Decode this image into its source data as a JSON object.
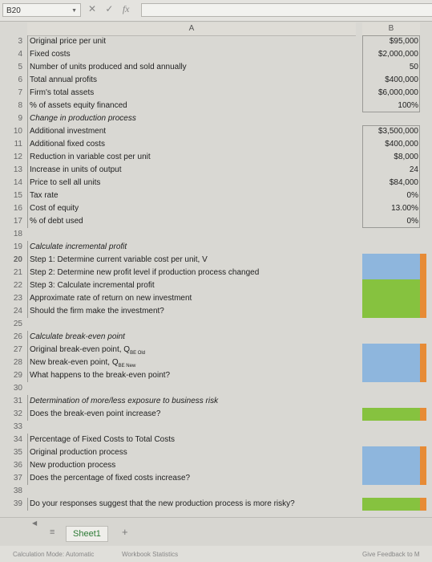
{
  "formula_bar": {
    "cell_ref": "B20",
    "fx_label": "fx"
  },
  "columns": {
    "a": "A",
    "b": "B"
  },
  "rows": [
    {
      "n": "3",
      "a": "Original price per unit",
      "b": "$95,000"
    },
    {
      "n": "4",
      "a": "Fixed costs",
      "b": "$2,000,000"
    },
    {
      "n": "5",
      "a": "Number of units produced and sold annually",
      "b": "50"
    },
    {
      "n": "6",
      "a": "Total annual profits",
      "b": "$400,000"
    },
    {
      "n": "7",
      "a": "Firm's total assets",
      "b": "$6,000,000"
    },
    {
      "n": "8",
      "a": "% of assets equity financed",
      "b": "100%"
    },
    {
      "n": "9",
      "a": "Change in production process",
      "b": ""
    },
    {
      "n": "10",
      "a": "Additional investment",
      "b": "$3,500,000"
    },
    {
      "n": "11",
      "a": "Additional fixed costs",
      "b": "$400,000"
    },
    {
      "n": "12",
      "a": "Reduction in variable cost per unit",
      "b": "$8,000"
    },
    {
      "n": "13",
      "a": "Increase in units of output",
      "b": "24"
    },
    {
      "n": "14",
      "a": "Price to sell all units",
      "b": "$84,000"
    },
    {
      "n": "15",
      "a": "Tax rate",
      "b": "0%"
    },
    {
      "n": "16",
      "a": "Cost of equity",
      "b": "13.00%"
    },
    {
      "n": "17",
      "a": "% of debt used",
      "b": "0%"
    },
    {
      "n": "18",
      "a": "",
      "b": ""
    },
    {
      "n": "19",
      "a": "Calculate incremental profit",
      "b": ""
    },
    {
      "n": "20",
      "a": "Step 1: Determine current variable cost per unit, V",
      "b": ""
    },
    {
      "n": "21",
      "a": "Step 2: Determine new profit level if production process changed",
      "b": ""
    },
    {
      "n": "22",
      "a": "Step 3: Calculate incremental profit",
      "b": ""
    },
    {
      "n": "23",
      "a": "Approximate rate of return on new investment",
      "b": ""
    },
    {
      "n": "24",
      "a": "Should the firm make the investment?",
      "b": ""
    },
    {
      "n": "25",
      "a": "",
      "b": ""
    },
    {
      "n": "26",
      "a": "Calculate break-even point",
      "b": ""
    },
    {
      "n": "27",
      "a": "Original break-even point, Q",
      "sub": "BE Old",
      "b": ""
    },
    {
      "n": "28",
      "a": "New break-even point, Q",
      "sub": "BE New",
      "b": ""
    },
    {
      "n": "29",
      "a": "What happens to the break-even point?",
      "b": ""
    },
    {
      "n": "30",
      "a": "",
      "b": ""
    },
    {
      "n": "31",
      "a": "Determination of more/less exposure to business risk",
      "b": ""
    },
    {
      "n": "32",
      "a": "Does the break-even point increase?",
      "b": ""
    },
    {
      "n": "33",
      "a": "",
      "b": ""
    },
    {
      "n": "34",
      "a": "Percentage of Fixed Costs to Total Costs",
      "b": ""
    },
    {
      "n": "35",
      "a": "Original production process",
      "b": ""
    },
    {
      "n": "36",
      "a": "New production process",
      "b": ""
    },
    {
      "n": "37",
      "a": "Does the percentage of fixed costs increase?",
      "b": ""
    },
    {
      "n": "38",
      "a": "",
      "b": ""
    },
    {
      "n": "39",
      "a": "Do your responses suggest that the new production process is more risky?",
      "b": ""
    }
  ],
  "tabs": {
    "sheet_name": "Sheet1",
    "add_label": "+"
  },
  "status": {
    "calc_mode": "Calculation Mode: Automatic",
    "stats": "Workbook Statistics",
    "feedback": "Give Feedback to M"
  }
}
